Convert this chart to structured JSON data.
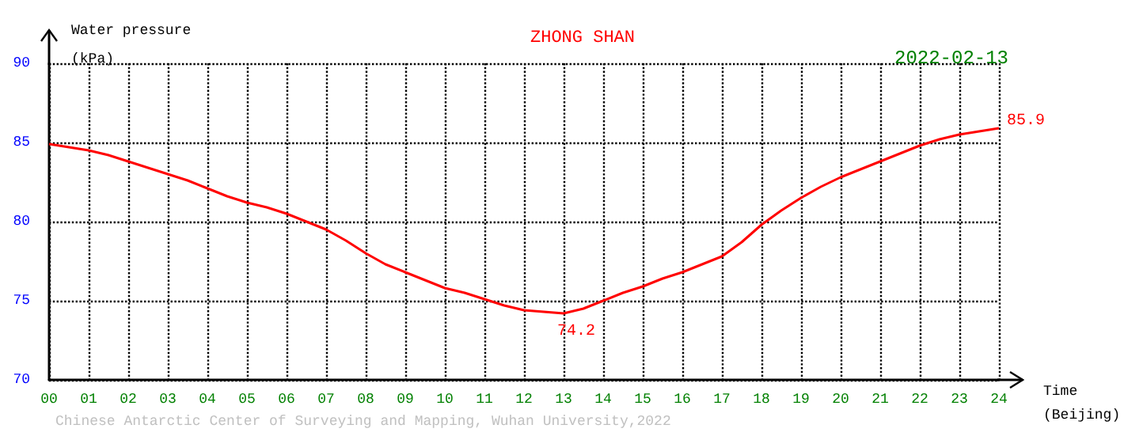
{
  "chart_data": {
    "type": "line",
    "title": "ZHONG SHAN",
    "subtitle": "2022-02-13",
    "xlabel": "Time (Beijing)",
    "ylabel": "Water pressure (kPa)",
    "x": [
      0,
      0.5,
      1,
      1.5,
      2,
      2.5,
      3,
      3.5,
      4,
      4.5,
      5,
      5.5,
      6,
      6.5,
      7,
      7.5,
      8,
      8.5,
      9,
      9.5,
      10,
      10.5,
      11,
      11.5,
      12,
      12.5,
      13,
      13.5,
      14,
      14.5,
      15,
      15.5,
      16,
      16.5,
      17,
      17.5,
      18,
      18.5,
      19,
      19.5,
      20,
      20.5,
      21,
      21.5,
      22,
      22.5,
      23,
      23.5,
      24
    ],
    "series": [
      {
        "color": "#ff0000",
        "values": [
          84.9,
          84.7,
          84.5,
          84.2,
          83.8,
          83.4,
          83.0,
          82.6,
          82.1,
          81.6,
          81.2,
          80.9,
          80.5,
          80.0,
          79.5,
          78.8,
          78.0,
          77.3,
          76.8,
          76.3,
          75.8,
          75.5,
          75.1,
          74.7,
          74.4,
          74.3,
          74.2,
          74.5,
          75.0,
          75.5,
          75.9,
          76.4,
          76.8,
          77.3,
          77.8,
          78.7,
          79.8,
          80.7,
          81.5,
          82.2,
          82.8,
          83.3,
          83.8,
          84.3,
          84.8,
          85.2,
          85.5,
          85.7,
          85.9
        ]
      }
    ],
    "xlim": [
      0,
      24
    ],
    "ylim": [
      70,
      90
    ],
    "xticks": [
      {
        "value": 0,
        "label": "00"
      },
      {
        "value": 1,
        "label": "01"
      },
      {
        "value": 2,
        "label": "02"
      },
      {
        "value": 3,
        "label": "03"
      },
      {
        "value": 4,
        "label": "04"
      },
      {
        "value": 5,
        "label": "05"
      },
      {
        "value": 6,
        "label": "06"
      },
      {
        "value": 7,
        "label": "07"
      },
      {
        "value": 8,
        "label": "08"
      },
      {
        "value": 9,
        "label": "09"
      },
      10,
      11,
      12,
      13,
      14,
      15,
      16,
      17,
      18,
      19,
      20,
      21,
      22,
      23,
      24
    ],
    "yticks": [
      70,
      75,
      80,
      85,
      90
    ],
    "grid": true,
    "marker": "none",
    "line_style": "solid",
    "annotations": [
      {
        "text": "85.9",
        "x": 24,
        "y": 85.9
      },
      {
        "text": "74.2",
        "x": 13,
        "y": 74.2
      },
      "Chinese Antarctic Center of Surveying and Mapping, Wuhan University,2022"
    ]
  }
}
